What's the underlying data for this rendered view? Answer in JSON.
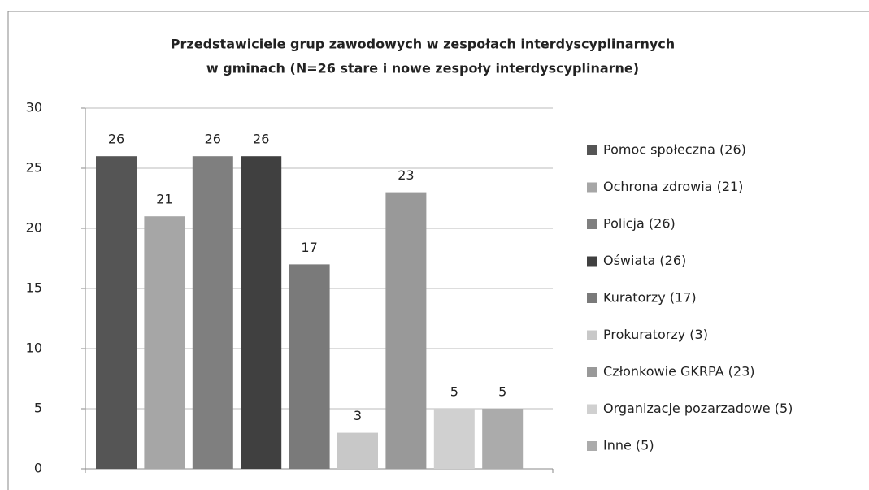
{
  "chart_data": {
    "type": "bar",
    "title": [
      "Przedstawiciele grup zawodowych w zespołach interdyscyplinarnych",
      "w gminach (N=26 stare i nowe zespoły interdyscyplinarne)"
    ],
    "categories": [
      "Pomoc społeczna (26)",
      "Ochrona zdrowia (21)",
      "Policja (26)",
      "Oświata (26)",
      "Kuratorzy (17)",
      "Prokuratorzy (3)",
      "Członkowie GKRPA (23)",
      "Organizacje pozarzadowe (5)",
      "Inne (5)"
    ],
    "values": [
      26,
      21,
      26,
      26,
      17,
      3,
      23,
      5,
      5
    ],
    "colors": [
      "#555555",
      "#a6a6a6",
      "#7f7f7f",
      "#404040",
      "#7a7a7a",
      "#c8c8c8",
      "#999999",
      "#d0d0d0",
      "#ababab"
    ],
    "ylim": [
      0,
      30
    ],
    "yticks": [
      0,
      5,
      10,
      15,
      20,
      25,
      30
    ],
    "grid": true,
    "legend": "right"
  }
}
